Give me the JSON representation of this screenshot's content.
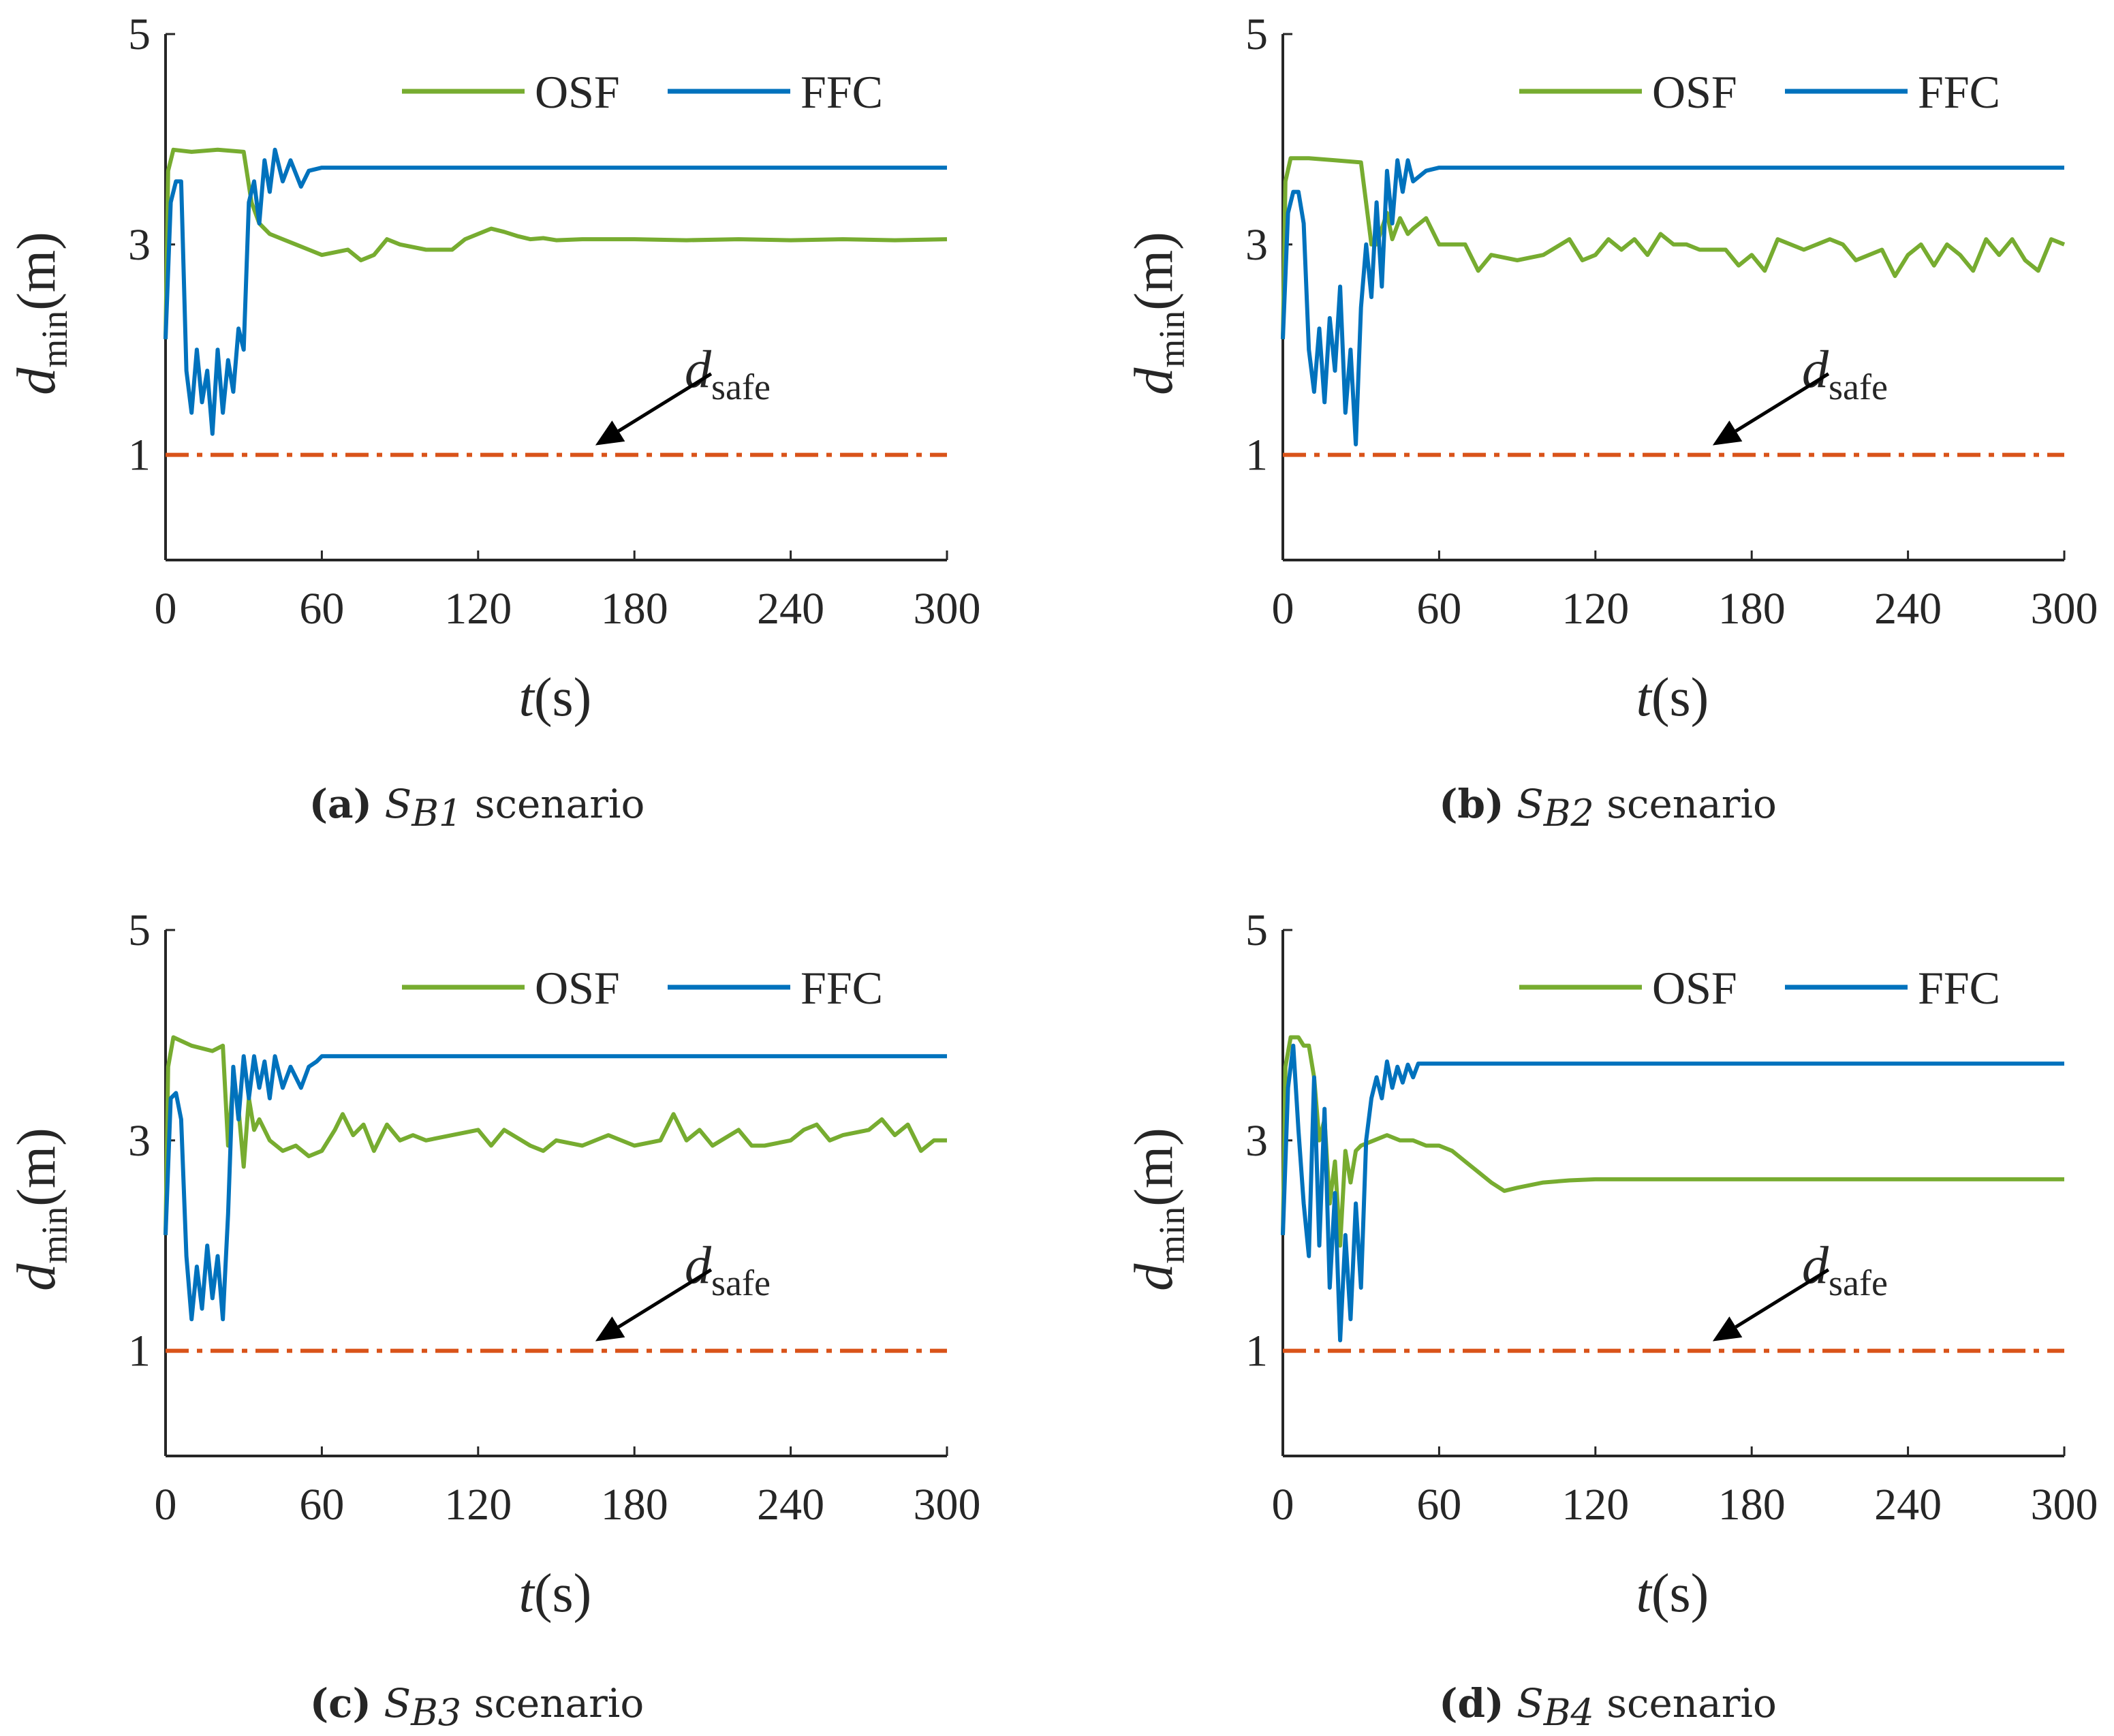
{
  "colors": {
    "osf": "#77ac30",
    "ffc": "#0072bd",
    "safe": "#d95319",
    "axis": "#262626"
  },
  "chart_data": [
    {
      "id": "a",
      "type": "line",
      "caption": {
        "letter": "(a)",
        "symbol": "S",
        "subscript": "B1",
        "text": "scenario"
      },
      "xlabel": {
        "var": "t",
        "unit": "(s)"
      },
      "ylabel": {
        "var": "d",
        "subscript": "min",
        "unit": "(m)"
      },
      "xlim": [
        0,
        300
      ],
      "ylim": [
        0,
        5
      ],
      "xticks": [
        "0",
        "60",
        "120",
        "180",
        "240",
        "300"
      ],
      "yticks": [
        "1",
        "3",
        "5"
      ],
      "legend": "top-right",
      "annotation": {
        "var": "d",
        "subscript": "safe",
        "points_to": [
          165,
          1.0
        ]
      },
      "series": [
        {
          "name": "OSF",
          "color_key": "osf",
          "x": [
            0,
            1,
            3,
            10,
            20,
            30,
            33,
            36,
            40,
            45,
            50,
            55,
            60,
            70,
            75,
            80,
            85,
            90,
            100,
            110,
            115,
            120,
            125,
            130,
            135,
            140,
            145,
            150,
            160,
            180,
            200,
            220,
            240,
            260,
            280,
            300
          ],
          "y": [
            2.1,
            3.7,
            3.9,
            3.88,
            3.9,
            3.88,
            3.4,
            3.2,
            3.1,
            3.05,
            3.0,
            2.95,
            2.9,
            2.95,
            2.85,
            2.9,
            3.05,
            3.0,
            2.95,
            2.95,
            3.05,
            3.1,
            3.15,
            3.12,
            3.08,
            3.05,
            3.06,
            3.04,
            3.05,
            3.05,
            3.04,
            3.05,
            3.04,
            3.05,
            3.04,
            3.05
          ]
        },
        {
          "name": "FFC",
          "color_key": "ffc",
          "x": [
            0,
            2,
            4,
            6,
            8,
            10,
            12,
            14,
            16,
            18,
            20,
            22,
            24,
            26,
            28,
            30,
            32,
            34,
            36,
            38,
            40,
            42,
            45,
            48,
            52,
            55,
            60,
            80,
            120,
            180,
            240,
            300
          ],
          "y": [
            2.1,
            3.4,
            3.6,
            3.6,
            1.8,
            1.4,
            2.0,
            1.5,
            1.8,
            1.2,
            2.0,
            1.4,
            1.9,
            1.6,
            2.2,
            2.0,
            3.4,
            3.6,
            3.2,
            3.8,
            3.5,
            3.9,
            3.6,
            3.8,
            3.55,
            3.7,
            3.73,
            3.73,
            3.73,
            3.73,
            3.73,
            3.73
          ]
        },
        {
          "name": "d_safe",
          "color_key": "safe",
          "dashed": true,
          "x": [
            0,
            300
          ],
          "y": [
            1.0,
            1.0
          ]
        }
      ]
    },
    {
      "id": "b",
      "type": "line",
      "caption": {
        "letter": "(b)",
        "symbol": "S",
        "subscript": "B2",
        "text": "scenario"
      },
      "xlabel": {
        "var": "t",
        "unit": "(s)"
      },
      "ylabel": {
        "var": "d",
        "subscript": "min",
        "unit": "(m)"
      },
      "xlim": [
        0,
        300
      ],
      "ylim": [
        0,
        5
      ],
      "xticks": [
        "0",
        "60",
        "120",
        "180",
        "240",
        "300"
      ],
      "yticks": [
        "1",
        "3",
        "5"
      ],
      "legend": "top-right",
      "annotation": {
        "var": "d",
        "subscript": "safe",
        "points_to": [
          165,
          1.0
        ]
      },
      "series": [
        {
          "name": "OSF",
          "color_key": "osf",
          "x": [
            0,
            1,
            3,
            10,
            20,
            30,
            34,
            36,
            40,
            42,
            45,
            48,
            50,
            55,
            60,
            65,
            70,
            75,
            80,
            90,
            100,
            110,
            115,
            120,
            125,
            130,
            135,
            140,
            145,
            150,
            155,
            160,
            170,
            175,
            180,
            185,
            190,
            200,
            210,
            215,
            220,
            230,
            235,
            240,
            245,
            250,
            255,
            260,
            265,
            270,
            275,
            280,
            285,
            290,
            295,
            300
          ],
          "y": [
            2.1,
            3.6,
            3.82,
            3.82,
            3.8,
            3.78,
            3.0,
            3.0,
            3.3,
            3.05,
            3.25,
            3.1,
            3.15,
            3.25,
            3.0,
            3.0,
            3.0,
            2.75,
            2.9,
            2.85,
            2.9,
            3.05,
            2.85,
            2.9,
            3.05,
            2.95,
            3.05,
            2.9,
            3.1,
            3.0,
            3.0,
            2.95,
            2.95,
            2.8,
            2.9,
            2.75,
            3.05,
            2.95,
            3.05,
            3.0,
            2.85,
            2.95,
            2.7,
            2.9,
            3.0,
            2.8,
            3.0,
            2.9,
            2.75,
            3.05,
            2.9,
            3.05,
            2.85,
            2.75,
            3.05,
            3.0
          ]
        },
        {
          "name": "FFC",
          "color_key": "ffc",
          "x": [
            0,
            2,
            4,
            6,
            8,
            10,
            12,
            14,
            16,
            18,
            20,
            22,
            24,
            26,
            28,
            30,
            32,
            34,
            36,
            38,
            40,
            42,
            44,
            46,
            48,
            50,
            55,
            60,
            120,
            180,
            240,
            300
          ],
          "y": [
            2.1,
            3.3,
            3.5,
            3.5,
            3.2,
            2.0,
            1.6,
            2.2,
            1.5,
            2.3,
            1.8,
            2.6,
            1.4,
            2.0,
            1.1,
            2.4,
            3.0,
            2.5,
            3.4,
            2.6,
            3.7,
            3.2,
            3.8,
            3.5,
            3.8,
            3.6,
            3.7,
            3.73,
            3.73,
            3.73,
            3.73,
            3.73
          ]
        },
        {
          "name": "d_safe",
          "color_key": "safe",
          "dashed": true,
          "x": [
            0,
            300
          ],
          "y": [
            1.0,
            1.0
          ]
        }
      ]
    },
    {
      "id": "c",
      "type": "line",
      "caption": {
        "letter": "(c)",
        "symbol": "S",
        "subscript": "B3",
        "text": "scenario"
      },
      "xlabel": {
        "var": "t",
        "unit": "(s)"
      },
      "ylabel": {
        "var": "d",
        "subscript": "min",
        "unit": "(m)"
      },
      "xlim": [
        0,
        300
      ],
      "ylim": [
        0,
        5
      ],
      "xticks": [
        "0",
        "60",
        "120",
        "180",
        "240",
        "300"
      ],
      "yticks": [
        "1",
        "3",
        "5"
      ],
      "legend": "top-right",
      "annotation": {
        "var": "d",
        "subscript": "safe",
        "points_to": [
          165,
          1.0
        ]
      },
      "series": [
        {
          "name": "OSF",
          "color_key": "osf",
          "x": [
            0,
            1,
            3,
            10,
            18,
            22,
            24,
            26,
            28,
            30,
            32,
            34,
            36,
            40,
            45,
            50,
            55,
            60,
            65,
            68,
            72,
            76,
            80,
            85,
            90,
            95,
            100,
            110,
            120,
            125,
            130,
            140,
            145,
            150,
            160,
            170,
            180,
            190,
            195,
            200,
            205,
            210,
            220,
            225,
            230,
            240,
            245,
            250,
            255,
            260,
            270,
            275,
            280,
            285,
            290,
            295,
            300
          ],
          "y": [
            2.1,
            3.7,
            3.98,
            3.9,
            3.85,
            3.9,
            2.95,
            3.6,
            3.3,
            2.75,
            3.4,
            3.1,
            3.2,
            3.0,
            2.9,
            2.95,
            2.85,
            2.9,
            3.1,
            3.25,
            3.05,
            3.15,
            2.9,
            3.15,
            3.0,
            3.05,
            3.0,
            3.05,
            3.1,
            2.95,
            3.1,
            2.95,
            2.9,
            3.0,
            2.95,
            3.05,
            2.95,
            3.0,
            3.25,
            3.0,
            3.1,
            2.95,
            3.1,
            2.95,
            2.95,
            3.0,
            3.1,
            3.15,
            3.0,
            3.05,
            3.1,
            3.2,
            3.05,
            3.15,
            2.9,
            3.0,
            3.0
          ]
        },
        {
          "name": "FFC",
          "color_key": "ffc",
          "x": [
            0,
            2,
            4,
            6,
            8,
            10,
            12,
            14,
            16,
            18,
            20,
            22,
            24,
            26,
            28,
            30,
            32,
            34,
            36,
            38,
            40,
            42,
            45,
            48,
            52,
            55,
            58,
            60,
            120,
            180,
            240,
            300
          ],
          "y": [
            2.1,
            3.4,
            3.45,
            3.2,
            1.9,
            1.3,
            1.8,
            1.4,
            2.0,
            1.5,
            1.9,
            1.3,
            2.3,
            3.7,
            3.2,
            3.8,
            3.4,
            3.8,
            3.5,
            3.75,
            3.4,
            3.8,
            3.5,
            3.7,
            3.5,
            3.7,
            3.75,
            3.8,
            3.8,
            3.8,
            3.8,
            3.8
          ]
        },
        {
          "name": "d_safe",
          "color_key": "safe",
          "dashed": true,
          "x": [
            0,
            300
          ],
          "y": [
            1.0,
            1.0
          ]
        }
      ]
    },
    {
      "id": "d",
      "type": "line",
      "caption": {
        "letter": "(d)",
        "symbol": "S",
        "subscript": "B4",
        "text": "scenario"
      },
      "xlabel": {
        "var": "t",
        "unit": "(s)"
      },
      "ylabel": {
        "var": "d",
        "subscript": "min",
        "unit": "(m)"
      },
      "xlim": [
        0,
        300
      ],
      "ylim": [
        0,
        5
      ],
      "xticks": [
        "0",
        "60",
        "120",
        "180",
        "240",
        "300"
      ],
      "yticks": [
        "1",
        "3",
        "5"
      ],
      "legend": "top-right",
      "annotation": {
        "var": "d",
        "subscript": "safe",
        "points_to": [
          165,
          1.0
        ]
      },
      "series": [
        {
          "name": "OSF",
          "color_key": "osf",
          "x": [
            0,
            1,
            3,
            6,
            8,
            10,
            12,
            14,
            16,
            18,
            20,
            22,
            24,
            26,
            28,
            30,
            35,
            40,
            45,
            50,
            55,
            60,
            65,
            70,
            75,
            80,
            85,
            90,
            100,
            110,
            120,
            150,
            200,
            250,
            300
          ],
          "y": [
            2.1,
            3.7,
            3.98,
            3.98,
            3.9,
            3.9,
            3.6,
            3.0,
            3.2,
            2.4,
            2.8,
            2.0,
            2.9,
            2.6,
            2.9,
            2.95,
            3.0,
            3.05,
            3.0,
            3.0,
            2.95,
            2.95,
            2.9,
            2.8,
            2.7,
            2.6,
            2.52,
            2.55,
            2.6,
            2.62,
            2.63,
            2.63,
            2.63,
            2.63,
            2.63
          ]
        },
        {
          "name": "FFC",
          "color_key": "ffc",
          "x": [
            0,
            2,
            4,
            6,
            8,
            10,
            12,
            14,
            16,
            18,
            20,
            22,
            24,
            26,
            28,
            30,
            32,
            34,
            36,
            38,
            40,
            42,
            44,
            46,
            48,
            50,
            52,
            60,
            120,
            180,
            240,
            300
          ],
          "y": [
            2.1,
            3.5,
            3.9,
            3.1,
            2.4,
            1.9,
            3.6,
            2.0,
            3.3,
            1.6,
            2.5,
            1.1,
            2.1,
            1.3,
            2.4,
            1.6,
            3.0,
            3.4,
            3.6,
            3.4,
            3.75,
            3.5,
            3.7,
            3.55,
            3.72,
            3.6,
            3.73,
            3.73,
            3.73,
            3.73,
            3.73,
            3.73
          ]
        },
        {
          "name": "d_safe",
          "color_key": "safe",
          "dashed": true,
          "x": [
            0,
            300
          ],
          "y": [
            1.0,
            1.0
          ]
        }
      ]
    }
  ]
}
